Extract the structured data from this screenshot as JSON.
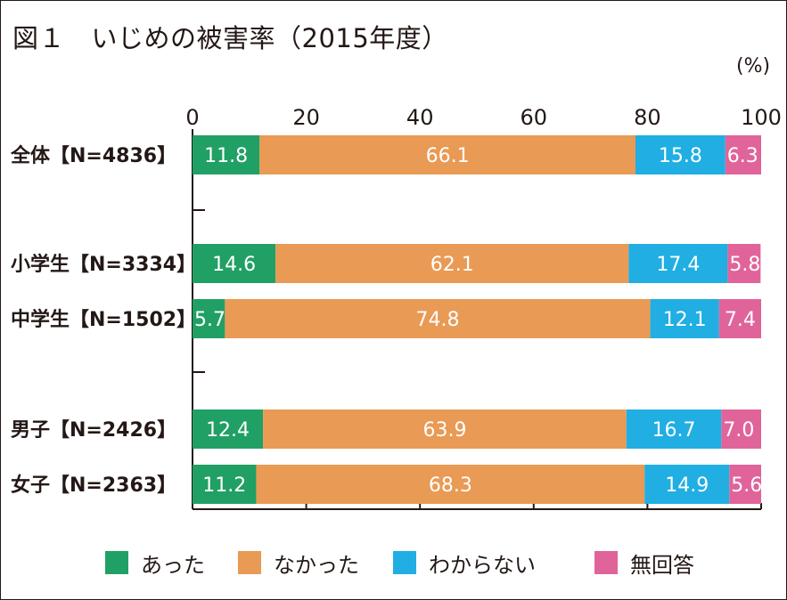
{
  "title": "図１　いじめの被害率（2015年度）",
  "unit_label": "(%)",
  "colors": {
    "atta": "#20a064",
    "nakatta": "#e99a54",
    "wakaranai": "#20aee3",
    "mukaitou": "#e0649a",
    "axis": "#231815"
  },
  "legend": [
    {
      "label": "あった",
      "color": "#20a064"
    },
    {
      "label": "なかった",
      "color": "#e99a54"
    },
    {
      "label": "わからない",
      "color": "#20aee3"
    },
    {
      "label": "無回答",
      "color": "#e0649a"
    }
  ],
  "chart_data": {
    "type": "bar",
    "orientation": "horizontal",
    "stacked": true,
    "title": "図１　いじめの被害率（2015年度）",
    "unit": "(%)",
    "xlim": [
      0,
      100
    ],
    "x_ticks": [
      "0",
      "20",
      "40",
      "60",
      "80",
      "100"
    ],
    "tick_axis_position": "top",
    "legend_position": "bottom",
    "categories": [
      "全体【N=4836】",
      "小学生【N=3334】",
      "中学生【N=1502】",
      "男子【N=2426】",
      "女子【N=2363】"
    ],
    "series": [
      {
        "name": "あった",
        "values": [
          11.8,
          14.6,
          5.7,
          12.4,
          11.2
        ]
      },
      {
        "name": "なかった",
        "values": [
          66.1,
          62.1,
          74.8,
          63.9,
          68.3
        ]
      },
      {
        "name": "わからない",
        "values": [
          15.8,
          17.4,
          12.1,
          16.7,
          14.9
        ]
      },
      {
        "name": "無回答",
        "values": [
          6.3,
          5.8,
          7.4,
          7.0,
          5.6
        ]
      }
    ],
    "data_labels": [
      [
        "11.8",
        "14.6",
        "5.7",
        "12.4",
        "11.2"
      ],
      [
        "66.1",
        "62.1",
        "74.8",
        "63.9",
        "68.3"
      ],
      [
        "15.8",
        "17.4",
        "12.1",
        "16.7",
        "14.9"
      ],
      [
        "6.3",
        "5.8",
        "7.4",
        "7.0",
        "5.6"
      ]
    ]
  }
}
